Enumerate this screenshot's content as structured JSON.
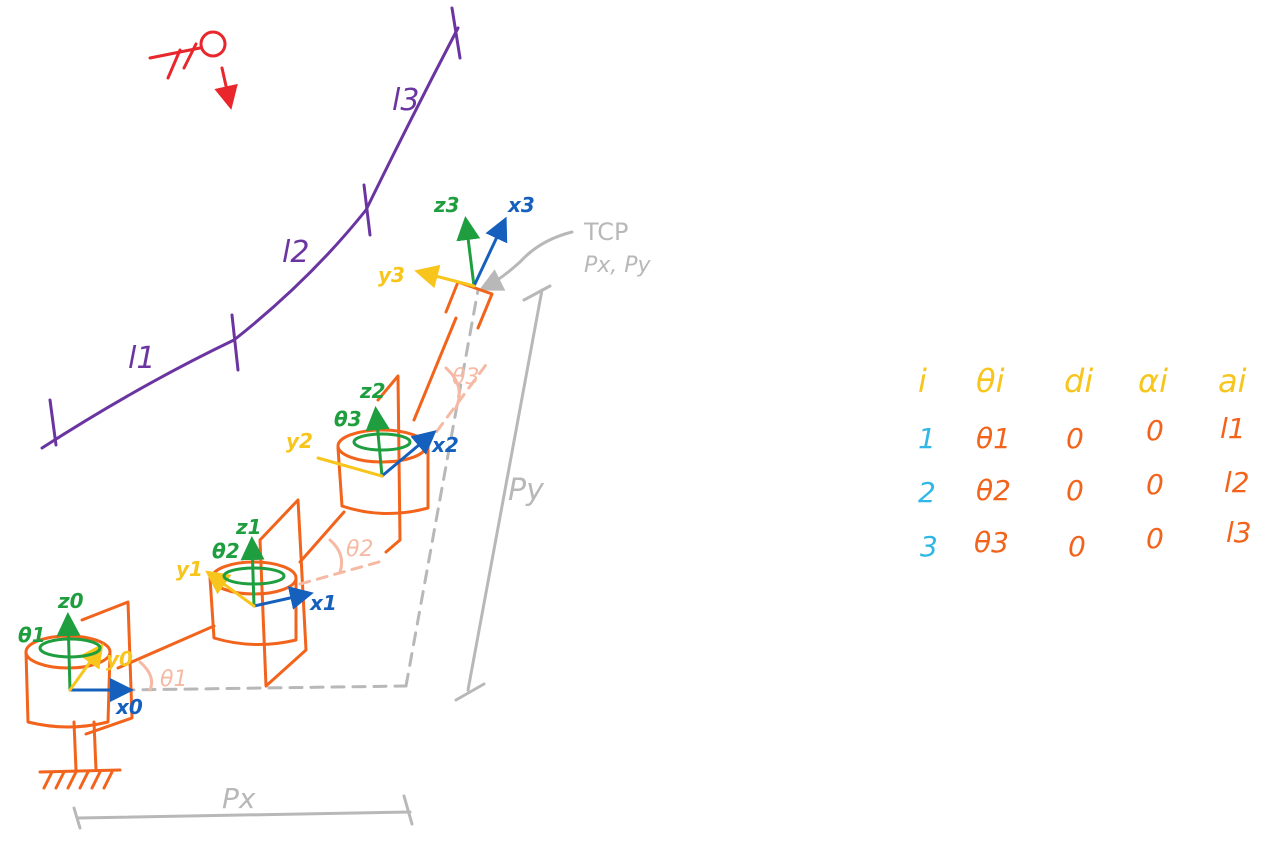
{
  "colors": {
    "links": "#6a35a0",
    "robot": "#f2641c",
    "gray": "#b8b8b8",
    "green": "#1e9e3e",
    "blue": "#1560bd",
    "yellow": "#f7c51b",
    "red": "#e8262b",
    "cyan": "#2fb8e6",
    "angle": "#f6b9a4"
  },
  "links": [
    {
      "label": "l1"
    },
    {
      "label": "l2"
    },
    {
      "label": "l3"
    }
  ],
  "frames": {
    "f0": {
      "x": "x0",
      "y": "y0",
      "z": "z0",
      "theta": "θ1"
    },
    "f1": {
      "x": "x1",
      "y": "y1",
      "z": "z1",
      "theta": "θ2"
    },
    "f2": {
      "x": "x2",
      "y": "y2",
      "z": "z2",
      "theta": "θ3"
    },
    "f3": {
      "x": "x3",
      "y": "y3",
      "z": "z3"
    }
  },
  "angles": {
    "a1": "θ1",
    "a2": "θ2",
    "a3": "θ3"
  },
  "tcp": {
    "label": "TCP",
    "coords": "Px, Py"
  },
  "dims": {
    "px": "Px",
    "py": "Py"
  },
  "dh_table": {
    "headers": [
      "i",
      "θi",
      "di",
      "αi",
      "ai"
    ],
    "rows": [
      [
        "1",
        "θ1",
        "0",
        "0",
        "l1"
      ],
      [
        "2",
        "θ2",
        "0",
        "0",
        "l2"
      ],
      [
        "3",
        "θ3",
        "0",
        "0",
        "l3"
      ]
    ]
  }
}
